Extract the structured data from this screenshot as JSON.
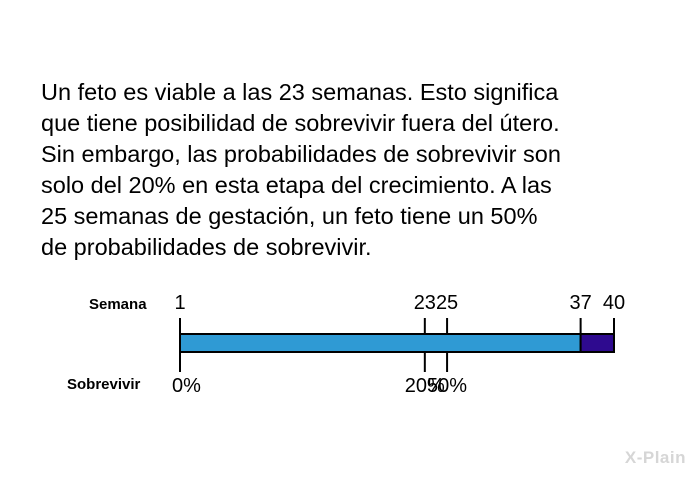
{
  "text": {
    "lines": [
      "Un feto es viable a las 23 semanas. Esto significa",
      "que tiene posibilidad de sobrevivir fuera del útero.",
      "Sin embargo, las probabilidades de sobrevivir son",
      "solo del 20% en esta etapa del crecimiento. A las",
      "25 semanas de gestación, un feto tiene un 50%",
      "de probabilidades de sobrevivir."
    ]
  },
  "timeline": {
    "week_label": "Semana",
    "survival_label": "Sobrevivir",
    "week_range": [
      1,
      40
    ],
    "segments": [
      {
        "from": 1,
        "to": 37,
        "color": "#2f9ad4"
      },
      {
        "from": 37,
        "to": 40,
        "color": "#2e0a8f"
      }
    ],
    "week_ticks": [
      {
        "week": 1,
        "label": "1"
      },
      {
        "week": 23,
        "label": "23"
      },
      {
        "week": 25,
        "label": "25"
      },
      {
        "week": 37,
        "label": "37"
      },
      {
        "week": 40,
        "label": "40"
      }
    ],
    "survival_ticks": [
      {
        "week": 1,
        "label": "0%"
      },
      {
        "week": 23,
        "label": "20%"
      },
      {
        "week": 25,
        "label": "50%"
      }
    ]
  },
  "logo": {
    "text": "X-Plain"
  }
}
